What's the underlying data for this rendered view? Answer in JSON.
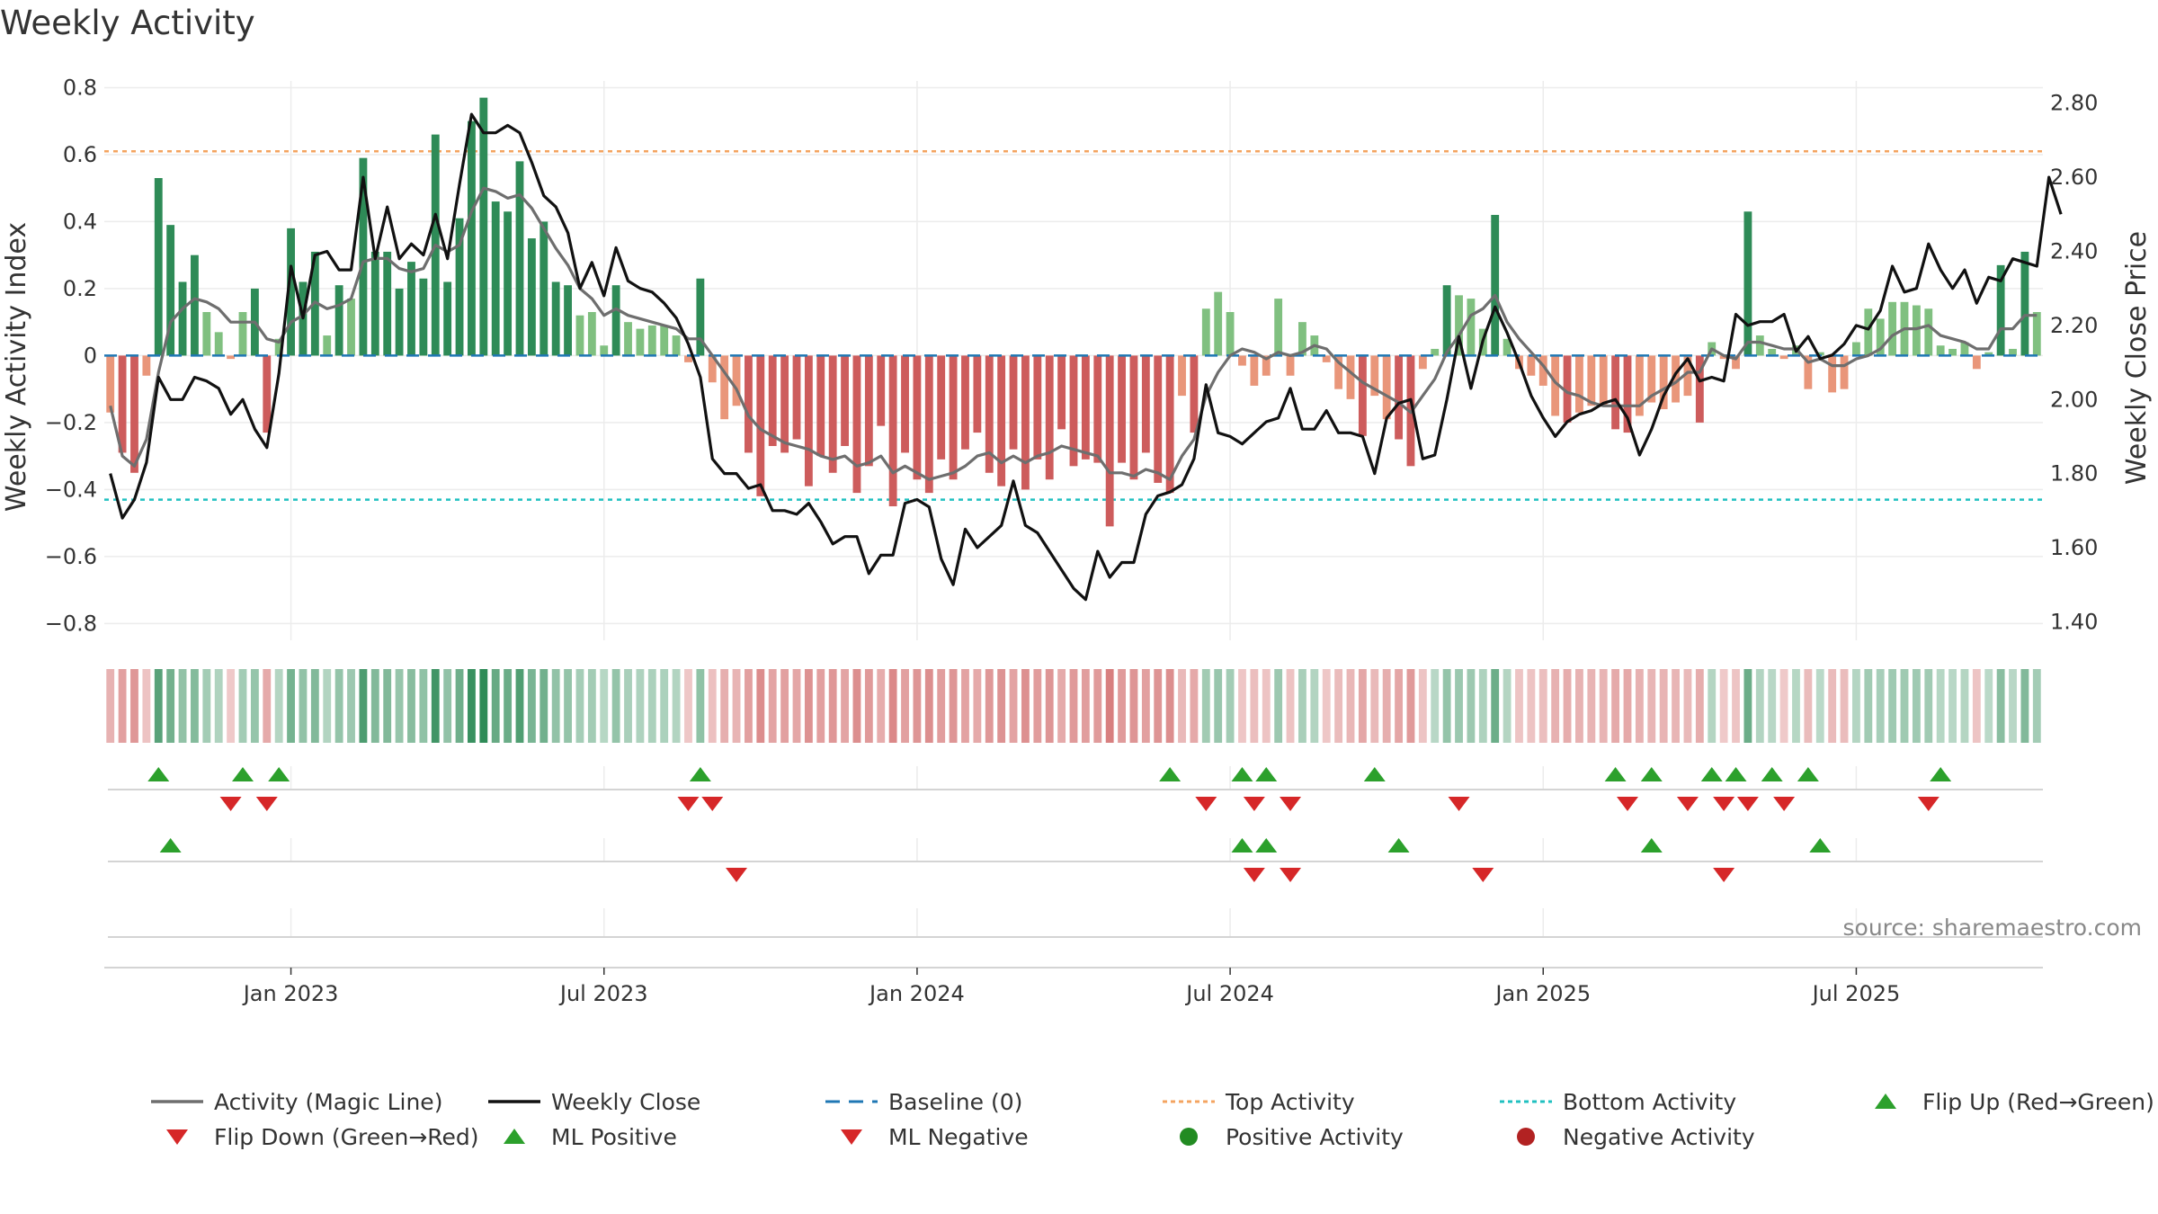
{
  "colors": {
    "pos_dark": "#2e8b57",
    "pos_light": "#80c080",
    "neg_dark": "#cd5c5c",
    "neg_light": "#e9967a",
    "magic": "#6e6e6e",
    "close": "#111111",
    "baseline": "#1f77b4",
    "top": "#f4a460",
    "bottom": "#20c0c0",
    "up": "#2ca02c",
    "down": "#d62728",
    "pos_dot": "#228b22",
    "neg_dot": "#b22222"
  },
  "chart_data": {
    "type": "bar",
    "title": "Weekly Activity",
    "ylabel": "Weekly Activity Index",
    "y2label": "Weekly Close Price",
    "ylim": [
      -0.85,
      0.82
    ],
    "y2lim": [
      1.35,
      2.86
    ],
    "yticks": [
      -0.8,
      -0.6,
      -0.4,
      -0.2,
      0,
      0.2,
      0.4,
      0.6,
      0.8
    ],
    "ytick_labels": [
      "−0.8",
      "−0.6",
      "−0.4",
      "−0.2",
      "0",
      "0.2",
      "0.4",
      "0.6",
      "0.8"
    ],
    "y2ticks": [
      1.4,
      1.6,
      1.8,
      2.0,
      2.2,
      2.4,
      2.6,
      2.8
    ],
    "y2tick_labels": [
      "1.40",
      "1.60",
      "1.80",
      "2.00",
      "2.20",
      "2.40",
      "2.60",
      "2.80"
    ],
    "x_ticks": [
      {
        "week": 15,
        "label": "Jan 2023"
      },
      {
        "week": 41,
        "label": "Jul 2023"
      },
      {
        "week": 67,
        "label": "Jan 2024"
      },
      {
        "week": 93,
        "label": "Jul 2024"
      },
      {
        "week": 119,
        "label": "Jan 2025"
      },
      {
        "week": 145,
        "label": "Jul 2025"
      }
    ],
    "top_activity": 0.61,
    "bottom_activity": -0.43,
    "activity": [
      -0.17,
      -0.29,
      -0.35,
      -0.06,
      0.53,
      0.39,
      0.22,
      0.3,
      0.13,
      0.07,
      -0.01,
      0.13,
      0.2,
      -0.23,
      0.05,
      0.38,
      0.22,
      0.31,
      0.06,
      0.21,
      0.17,
      0.59,
      0.31,
      0.31,
      0.2,
      0.28,
      0.23,
      0.66,
      0.22,
      0.41,
      0.7,
      0.77,
      0.46,
      0.43,
      0.58,
      0.35,
      0.4,
      0.22,
      0.21,
      0.12,
      0.13,
      0.03,
      0.21,
      0.1,
      0.08,
      0.09,
      0.09,
      0.06,
      -0.02,
      0.23,
      -0.08,
      -0.19,
      -0.15,
      -0.29,
      -0.42,
      -0.27,
      -0.29,
      -0.25,
      -0.39,
      -0.3,
      -0.35,
      -0.27,
      -0.41,
      -0.33,
      -0.21,
      -0.45,
      -0.29,
      -0.37,
      -0.41,
      -0.31,
      -0.37,
      -0.28,
      -0.23,
      -0.35,
      -0.39,
      -0.28,
      -0.4,
      -0.31,
      -0.37,
      -0.22,
      -0.33,
      -0.31,
      -0.32,
      -0.51,
      -0.32,
      -0.37,
      -0.29,
      -0.38,
      -0.41,
      -0.12,
      -0.23,
      0.14,
      0.19,
      0.13,
      -0.03,
      -0.09,
      -0.06,
      0.17,
      -0.06,
      0.1,
      0.06,
      -0.02,
      -0.1,
      -0.13,
      -0.24,
      -0.12,
      -0.19,
      -0.25,
      -0.33,
      -0.04,
      0.02,
      0.21,
      0.18,
      0.17,
      0.08,
      0.42,
      0.05,
      -0.04,
      -0.06,
      -0.09,
      -0.18,
      -0.2,
      -0.17,
      -0.15,
      -0.15,
      -0.22,
      -0.23,
      -0.18,
      -0.14,
      -0.16,
      -0.14,
      -0.12,
      -0.2,
      0.04,
      -0.01,
      -0.04,
      0.43,
      0.06,
      0.02,
      -0.01,
      0.03,
      -0.1,
      0.01,
      -0.11,
      -0.1,
      0.04,
      0.14,
      0.11,
      0.16,
      0.16,
      0.15,
      0.14,
      0.03,
      0.02,
      0.04,
      -0.04,
      0.01,
      0.27,
      0.02,
      0.31,
      0.13
    ],
    "magic_line": [
      -0.15,
      -0.3,
      -0.33,
      -0.25,
      -0.05,
      0.1,
      0.14,
      0.17,
      0.16,
      0.14,
      0.1,
      0.1,
      0.1,
      0.05,
      0.04,
      0.1,
      0.12,
      0.16,
      0.14,
      0.15,
      0.17,
      0.28,
      0.29,
      0.29,
      0.26,
      0.25,
      0.26,
      0.33,
      0.31,
      0.33,
      0.43,
      0.5,
      0.49,
      0.47,
      0.48,
      0.44,
      0.38,
      0.32,
      0.27,
      0.2,
      0.17,
      0.12,
      0.14,
      0.12,
      0.11,
      0.1,
      0.09,
      0.08,
      0.05,
      0.05,
      0.0,
      -0.05,
      -0.1,
      -0.18,
      -0.22,
      -0.24,
      -0.26,
      -0.27,
      -0.28,
      -0.3,
      -0.31,
      -0.3,
      -0.33,
      -0.32,
      -0.3,
      -0.35,
      -0.33,
      -0.35,
      -0.37,
      -0.36,
      -0.35,
      -0.33,
      -0.3,
      -0.29,
      -0.32,
      -0.3,
      -0.32,
      -0.3,
      -0.29,
      -0.27,
      -0.28,
      -0.29,
      -0.3,
      -0.35,
      -0.35,
      -0.36,
      -0.34,
      -0.35,
      -0.37,
      -0.3,
      -0.25,
      -0.12,
      -0.05,
      0.0,
      0.02,
      0.01,
      -0.01,
      0.01,
      0.0,
      0.01,
      0.03,
      0.02,
      -0.02,
      -0.05,
      -0.08,
      -0.1,
      -0.12,
      -0.14,
      -0.17,
      -0.12,
      -0.07,
      0.01,
      0.06,
      0.12,
      0.14,
      0.18,
      0.1,
      0.05,
      0.01,
      -0.03,
      -0.08,
      -0.11,
      -0.12,
      -0.14,
      -0.15,
      -0.15,
      -0.15,
      -0.15,
      -0.12,
      -0.1,
      -0.08,
      -0.05,
      -0.05,
      0.02,
      0.0,
      -0.01,
      0.04,
      0.04,
      0.03,
      0.02,
      0.02,
      -0.02,
      -0.01,
      -0.03,
      -0.03,
      -0.01,
      0.0,
      0.02,
      0.06,
      0.08,
      0.08,
      0.09,
      0.06,
      0.05,
      0.04,
      0.02,
      0.02,
      0.08,
      0.08,
      0.12,
      0.12
    ],
    "weekly_close": [
      1.8,
      1.68,
      1.73,
      1.83,
      2.06,
      2.0,
      2.0,
      2.06,
      2.05,
      2.03,
      1.96,
      2.0,
      1.92,
      1.87,
      2.07,
      2.36,
      2.22,
      2.39,
      2.4,
      2.35,
      2.35,
      2.6,
      2.38,
      2.52,
      2.38,
      2.42,
      2.39,
      2.5,
      2.38,
      2.58,
      2.77,
      2.72,
      2.72,
      2.74,
      2.72,
      2.64,
      2.55,
      2.52,
      2.45,
      2.3,
      2.37,
      2.28,
      2.41,
      2.32,
      2.3,
      2.29,
      2.26,
      2.22,
      2.15,
      2.06,
      1.84,
      1.8,
      1.8,
      1.76,
      1.77,
      1.7,
      1.7,
      1.69,
      1.72,
      1.67,
      1.61,
      1.63,
      1.63,
      1.53,
      1.58,
      1.58,
      1.72,
      1.73,
      1.71,
      1.57,
      1.5,
      1.65,
      1.6,
      1.63,
      1.66,
      1.78,
      1.66,
      1.64,
      1.59,
      1.54,
      1.49,
      1.46,
      1.59,
      1.52,
      1.56,
      1.56,
      1.69,
      1.74,
      1.75,
      1.77,
      1.84,
      2.04,
      1.91,
      1.9,
      1.88,
      1.91,
      1.94,
      1.95,
      2.03,
      1.92,
      1.92,
      1.97,
      1.91,
      1.91,
      1.9,
      1.8,
      1.95,
      1.99,
      2.0,
      1.84,
      1.85,
      2.0,
      2.17,
      2.03,
      2.16,
      2.25,
      2.18,
      2.1,
      2.01,
      1.95,
      1.9,
      1.94,
      1.96,
      1.97,
      1.99,
      2.0,
      1.95,
      1.85,
      1.92,
      2.01,
      2.07,
      2.11,
      2.05,
      2.06,
      2.05,
      2.23,
      2.2,
      2.21,
      2.21,
      2.23,
      2.13,
      2.17,
      2.11,
      2.12,
      2.15,
      2.2,
      2.19,
      2.24,
      2.36,
      2.29,
      2.3,
      2.42,
      2.35,
      2.3,
      2.35,
      2.26,
      2.33,
      2.32,
      2.38,
      2.37,
      2.36,
      2.6,
      2.5
    ],
    "flip_up_weeks": [
      4,
      11,
      14,
      49,
      88,
      94,
      96,
      105,
      125,
      128,
      133,
      135,
      138,
      141,
      152
    ],
    "flip_down_weeks": [
      10,
      13,
      48,
      50,
      91,
      95,
      98,
      112,
      126,
      131,
      134,
      136,
      139,
      151
    ],
    "ml_positive_weeks": [
      5,
      94,
      96,
      107,
      128,
      142
    ],
    "ml_negative_weeks": [
      52,
      95,
      98,
      114,
      134
    ],
    "legend": [
      "Activity (Magic Line)",
      "Weekly Close",
      "Baseline (0)",
      "Top Activity",
      "Bottom Activity",
      "Flip Up (Red→Green)",
      "Flip Down (Green→Red)",
      "ML Positive",
      "ML Negative",
      "Positive Activity",
      "Negative Activity"
    ],
    "source": "source: sharemaestro.com"
  }
}
